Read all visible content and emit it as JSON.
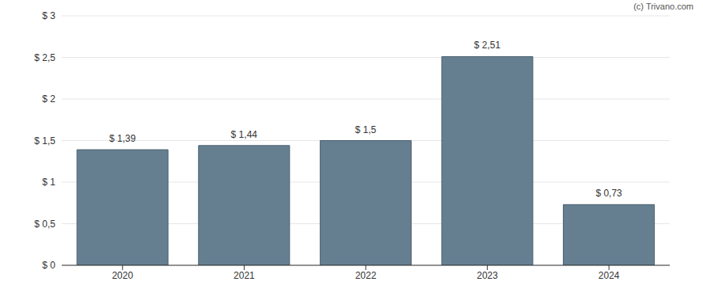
{
  "chart_data": {
    "type": "bar",
    "categories": [
      "2020",
      "2021",
      "2022",
      "2023",
      "2024"
    ],
    "values": [
      1.39,
      1.44,
      1.5,
      2.51,
      0.73
    ],
    "value_labels": [
      "$ 1,39",
      "$ 1,44",
      "$ 1,5",
      "$ 2,51",
      "$ 0,73"
    ],
    "color": "#657f91",
    "ylim": [
      0,
      3
    ],
    "yticks": [
      {
        "value": 0,
        "label": "$ 0"
      },
      {
        "value": 0.5,
        "label": "$ 0,5"
      },
      {
        "value": 1,
        "label": "$ 1"
      },
      {
        "value": 1.5,
        "label": "$ 1,5"
      },
      {
        "value": 2,
        "label": "$ 2"
      },
      {
        "value": 2.5,
        "label": "$ 2,5"
      },
      {
        "value": 3,
        "label": "$ 3"
      }
    ],
    "grid": true,
    "data_labels": true,
    "source": "(c) Trivano.com"
  }
}
